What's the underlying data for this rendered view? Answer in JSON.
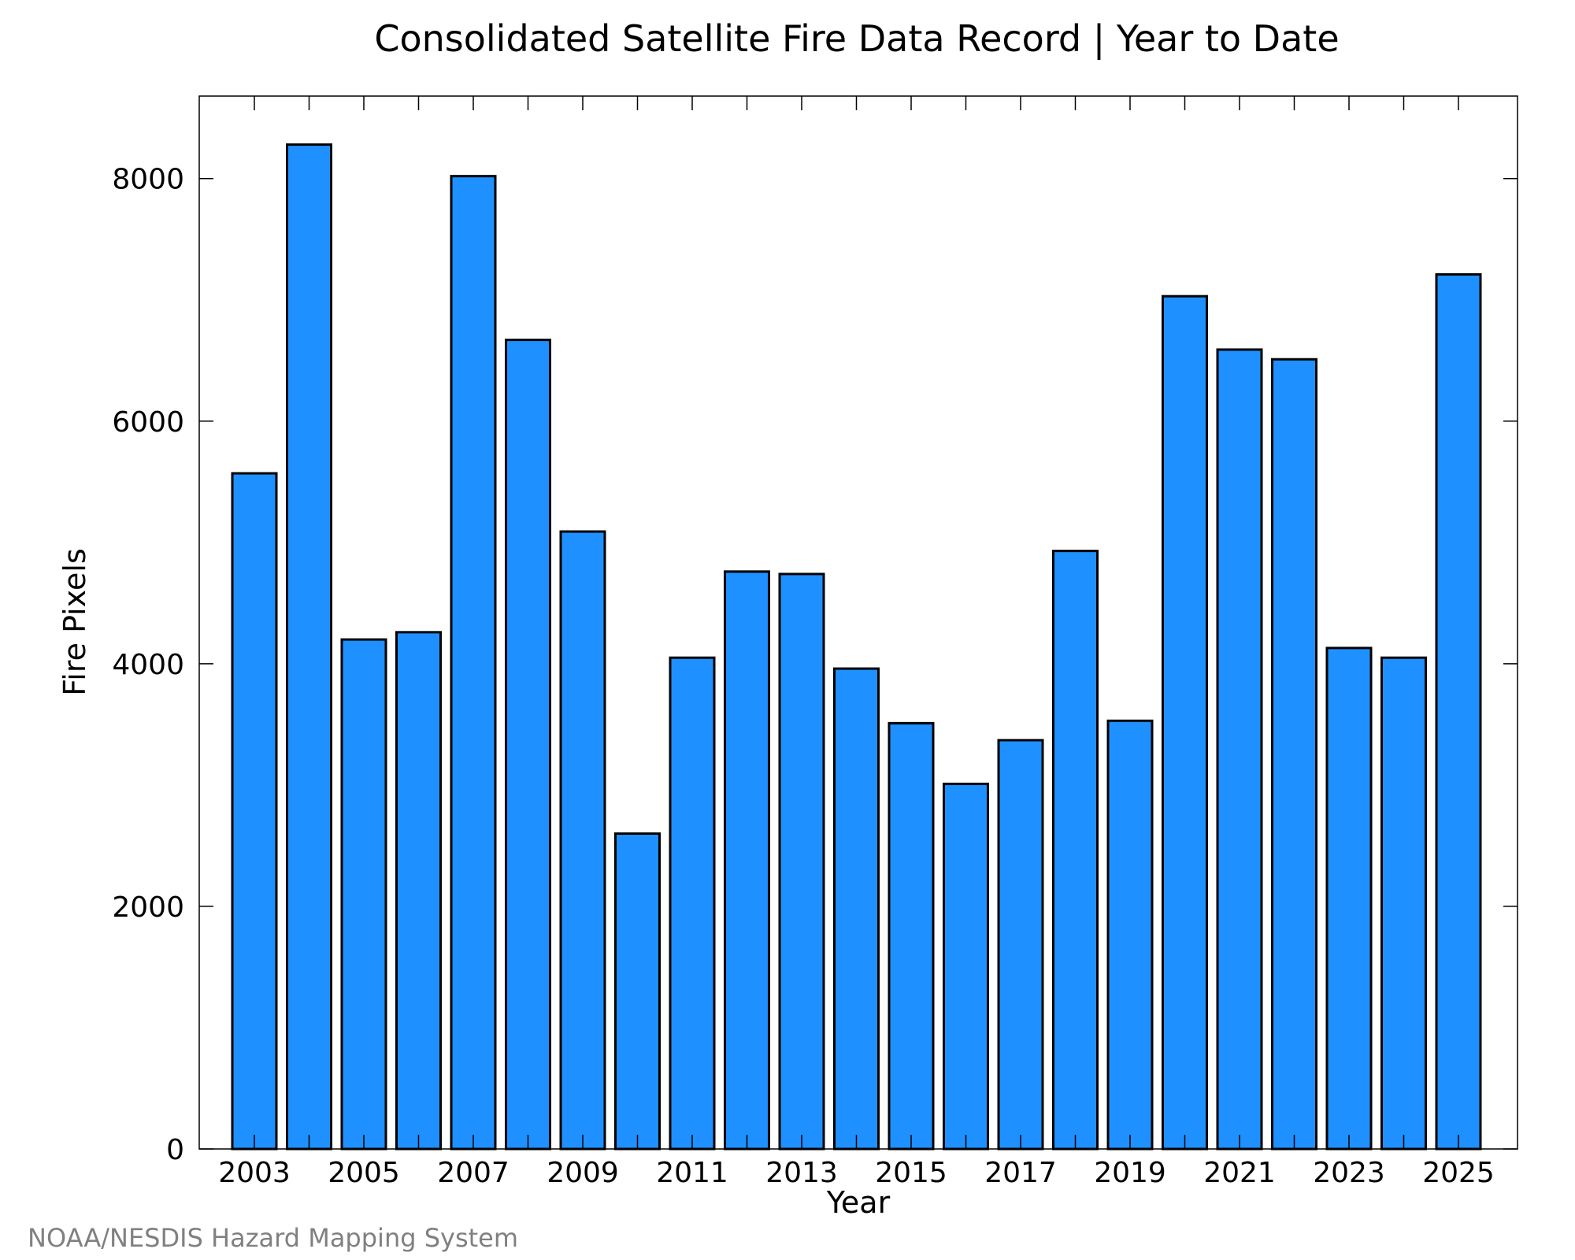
{
  "chart_data": {
    "type": "bar",
    "title": "Consolidated Satellite Fire Data Record | Year to Date",
    "xlabel": "Year",
    "ylabel": "Fire Pixels",
    "categories": [
      "2003",
      "2004",
      "2005",
      "2006",
      "2007",
      "2008",
      "2009",
      "2010",
      "2011",
      "2012",
      "2013",
      "2014",
      "2015",
      "2016",
      "2017",
      "2018",
      "2019",
      "2020",
      "2021",
      "2022",
      "2023",
      "2024",
      "2025"
    ],
    "values": [
      5570,
      8280,
      4200,
      4260,
      8020,
      6670,
      5090,
      2600,
      4050,
      4760,
      4740,
      3960,
      3510,
      3010,
      3370,
      4930,
      3530,
      7030,
      6590,
      6510,
      4130,
      4050,
      7210
    ],
    "x_tick_labels": [
      "2003",
      "2005",
      "2007",
      "2009",
      "2011",
      "2013",
      "2015",
      "2017",
      "2019",
      "2021",
      "2023",
      "2025"
    ],
    "y_ticks": [
      0,
      2000,
      4000,
      6000,
      8000
    ],
    "ylim": [
      0,
      8680
    ],
    "grid": false,
    "bar_color": "#1E90FF",
    "edge_color": "#000000"
  },
  "footer": {
    "credit": "NOAA/NESDIS Hazard Mapping System"
  }
}
